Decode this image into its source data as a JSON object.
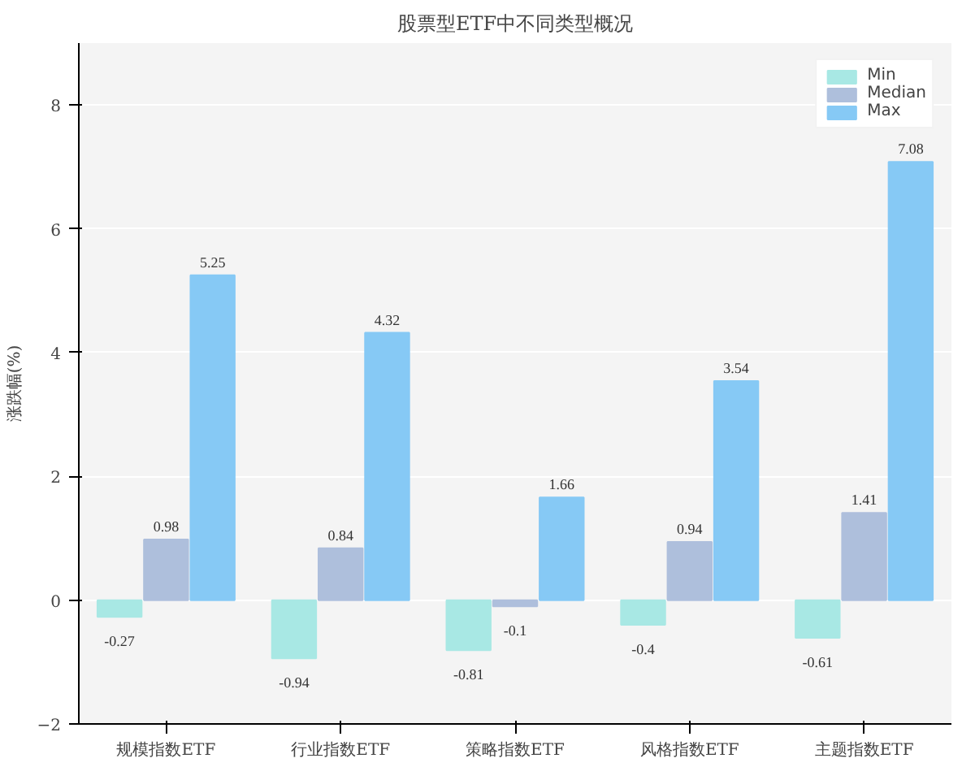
{
  "chart_data": {
    "type": "bar",
    "title": "股票型ETF中不同类型概况",
    "ylabel": "涨跌幅(%)",
    "categories": [
      "规模指数ETF",
      "行业指数ETF",
      "策略指数ETF",
      "风格指数ETF",
      "主题指数ETF"
    ],
    "series": [
      {
        "name": "Min",
        "color": "#a8e8e4",
        "values": [
          -0.27,
          -0.94,
          -0.81,
          -0.4,
          -0.61
        ]
      },
      {
        "name": "Median",
        "color": "#aebfdc",
        "values": [
          0.98,
          0.84,
          -0.1,
          0.94,
          1.41
        ]
      },
      {
        "name": "Max",
        "color": "#86c9f5",
        "values": [
          5.25,
          4.32,
          1.66,
          3.54,
          7.08
        ]
      }
    ],
    "ylim": [
      -2,
      9
    ],
    "yticks": [
      -2,
      0,
      2,
      4,
      6,
      8
    ],
    "grid": "y",
    "legend": "top right",
    "data_labels": true
  }
}
